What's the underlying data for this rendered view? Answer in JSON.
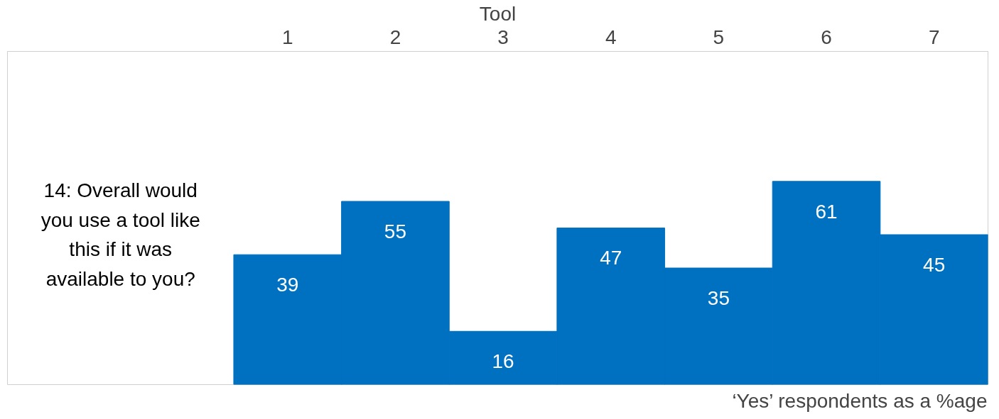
{
  "chart_data": {
    "type": "bar",
    "xlabel": "Tool",
    "ylabel": "14: Overall would you use a tool like this if it was available to you?",
    "categories": [
      "1",
      "2",
      "3",
      "4",
      "5",
      "6",
      "7"
    ],
    "values": [
      39,
      55,
      16,
      47,
      35,
      61,
      45
    ],
    "color": "#0070c0",
    "data_labels": true,
    "ylim": [
      0,
      100
    ],
    "tick_labels": "x",
    "grid": false,
    "annotations": [
      "‘Yes’ respondents as a %age"
    ]
  }
}
